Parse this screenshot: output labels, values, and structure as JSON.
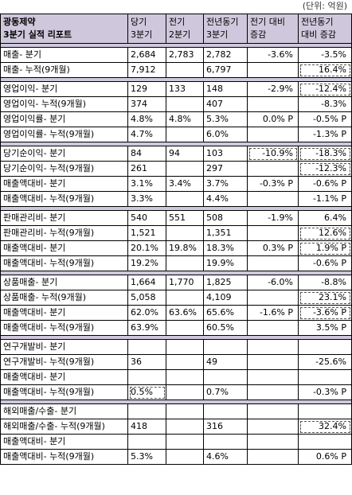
{
  "unit": "(단위: 억원)",
  "header": {
    "title_line1": "광동제약",
    "title_line2": "3분기 실적 리포트",
    "columns": [
      {
        "line1": "당기",
        "line2": "3분기"
      },
      {
        "line1": "전기",
        "line2": "2분기"
      },
      {
        "line1": "전년동기",
        "line2": "3분기"
      },
      {
        "line1": "전기 대비",
        "line2": "증감"
      },
      {
        "line1": "전년동기",
        "line2": "대비 증감"
      }
    ]
  },
  "groups": [
    {
      "rows": [
        {
          "label": "매출- 분기",
          "cells": [
            "2,684",
            "2,783",
            "2,782",
            "-3.6%",
            "-3.5%"
          ],
          "hl": []
        },
        {
          "label": "매출- 누적(9개월)",
          "cells": [
            "7,912",
            "",
            "6,797",
            "",
            "16.4%"
          ],
          "hl": [
            4
          ]
        }
      ]
    },
    {
      "rows": [
        {
          "label": "영업이익- 분기",
          "cells": [
            "129",
            "133",
            "148",
            "-2.9%",
            "-12.4%"
          ],
          "hl": [
            4
          ]
        },
        {
          "label": "영업이익- 누적(9개월)",
          "cells": [
            "374",
            "",
            "407",
            "",
            "-8.3%"
          ],
          "hl": []
        },
        {
          "label": "영업이익률- 분기",
          "cells": [
            "4.8%",
            "4.8%",
            "5.3%",
            "0.0% P",
            "-0.5% P"
          ],
          "hl": []
        },
        {
          "label": "영업이익률- 누적(9개월)",
          "cells": [
            "4.7%",
            "",
            "6.0%",
            "",
            "-1.3% P"
          ],
          "hl": []
        }
      ]
    },
    {
      "rows": [
        {
          "label": "당기순이익- 분기",
          "cells": [
            "84",
            "94",
            "103",
            "-10.9%",
            "-18.3%"
          ],
          "hl": [
            3,
            4
          ]
        },
        {
          "label": "당기순이익- 누적(9개월)",
          "cells": [
            "261",
            "",
            "297",
            "",
            "-12.3%"
          ],
          "hl": [
            4
          ]
        },
        {
          "label": "매출액대비- 분기",
          "cells": [
            "3.1%",
            "3.4%",
            "3.7%",
            "-0.3% P",
            "-0.6% P"
          ],
          "hl": []
        },
        {
          "label": "매출액대비- 누적(9개월)",
          "cells": [
            "3.3%",
            "",
            "4.4%",
            "",
            "-1.1% P"
          ],
          "hl": []
        }
      ]
    },
    {
      "rows": [
        {
          "label": "판매관리비- 분기",
          "cells": [
            "540",
            "551",
            "508",
            "-1.9%",
            "6.4%"
          ],
          "hl": []
        },
        {
          "label": "판매관리비- 누적(9개월)",
          "cells": [
            "1,521",
            "",
            "1,351",
            "",
            "12.6%"
          ],
          "hl": [
            4
          ]
        },
        {
          "label": "매출액대비- 분기",
          "cells": [
            "20.1%",
            "19.8%",
            "18.3%",
            "0.3% P",
            "1.9% P"
          ],
          "hl": [
            4
          ]
        },
        {
          "label": "매출액대비- 누적(9개월)",
          "cells": [
            "19.2%",
            "",
            "19.9%",
            "",
            "-0.6% P"
          ],
          "hl": []
        }
      ]
    },
    {
      "rows": [
        {
          "label": "상품매출- 분기",
          "cells": [
            "1,664",
            "1,770",
            "1,825",
            "-6.0%",
            "-8.8%"
          ],
          "hl": []
        },
        {
          "label": "상품매출- 누적(9개월)",
          "cells": [
            "5,058",
            "",
            "4,109",
            "",
            "23.1%"
          ],
          "hl": [
            4
          ]
        },
        {
          "label": "매출액대비- 분기",
          "cells": [
            "62.0%",
            "63.6%",
            "65.6%",
            "-1.6% P",
            "-3.6% P"
          ],
          "hl": [
            4
          ]
        },
        {
          "label": "매출액대비- 누적(9개월)",
          "cells": [
            "63.9%",
            "",
            "60.5%",
            "",
            "3.5% P"
          ],
          "hl": []
        }
      ]
    },
    {
      "rows": [
        {
          "label": "연구개발비- 분기",
          "cells": [
            "",
            "",
            "",
            "",
            ""
          ],
          "hl": []
        },
        {
          "label": "연구개발비- 누적(9개월)",
          "cells": [
            "36",
            "",
            "49",
            "",
            "-25.6%"
          ],
          "hl": []
        },
        {
          "label": "매출액대비- 분기",
          "cells": [
            "",
            "",
            "",
            "",
            ""
          ],
          "hl": []
        },
        {
          "label": "매출액대비- 누적(9개월)",
          "cells": [
            "0.5%",
            "",
            "0.7%",
            "",
            "-0.3% P"
          ],
          "hl": [
            0
          ]
        }
      ]
    },
    {
      "rows": [
        {
          "label": "해외매출/수출- 분기",
          "cells": [
            "",
            "",
            "",
            "",
            ""
          ],
          "hl": []
        },
        {
          "label": "해외매출/수출- 누적(9개월)",
          "cells": [
            "418",
            "",
            "316",
            "",
            "32.4%"
          ],
          "hl": [
            4
          ]
        },
        {
          "label": "매출액대비- 분기",
          "cells": [
            "",
            "",
            "",
            "",
            ""
          ],
          "hl": []
        },
        {
          "label": "매출액대비- 누적(9개월)",
          "cells": [
            "5.3%",
            "",
            "4.6%",
            "",
            "0.6% P"
          ],
          "hl": []
        }
      ]
    }
  ]
}
